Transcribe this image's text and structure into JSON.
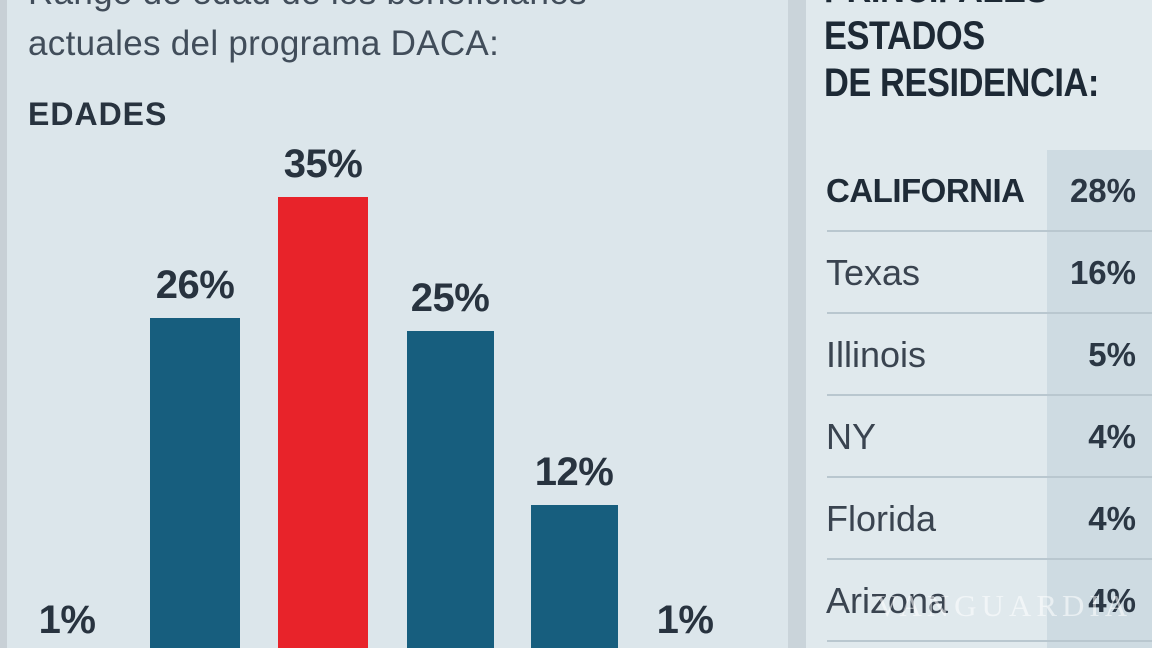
{
  "title": {
    "line1": "Rango de edad de los beneficiarios",
    "line2": "actuales del programa DACA:"
  },
  "chart": {
    "section_label": "EDADES"
  },
  "chart_data": {
    "type": "bar",
    "title": "Rango de edad de los beneficiarios actuales del programa DACA: EDADES",
    "values": [
      1,
      26,
      35,
      25,
      12,
      1
    ],
    "value_labels": [
      "1%",
      "26%",
      "35%",
      "25%",
      "12%",
      "1%"
    ],
    "highlight_index": 2,
    "bar_color": "#175e7e",
    "highlight_color": "#e8232a",
    "label_position": "above-bars",
    "axes_visible": false,
    "category_labels_visible": false,
    "ylim": [
      0,
      35
    ]
  },
  "states_panel": {
    "heading_lines": [
      "PRINCIPALES",
      "ESTADOS",
      "DE RESIDENCIA:"
    ],
    "rows": [
      {
        "state": "CALIFORNIA",
        "value": "28%",
        "emphasis": true
      },
      {
        "state": "Texas",
        "value": "16%",
        "emphasis": false
      },
      {
        "state": "Illinois",
        "value": "5%",
        "emphasis": false
      },
      {
        "state": "NY",
        "value": "4%",
        "emphasis": false
      },
      {
        "state": "Florida",
        "value": "4%",
        "emphasis": false
      },
      {
        "state": "Arizona",
        "value": "4%",
        "emphasis": false
      }
    ],
    "table_data": {
      "type": "table",
      "columns": [
        "state",
        "share"
      ],
      "rows": [
        [
          "CALIFORNIA",
          "28%"
        ],
        [
          "Texas",
          "16%"
        ],
        [
          "Illinois",
          "5%"
        ],
        [
          "NY",
          "4%"
        ],
        [
          "Florida",
          "4%"
        ],
        [
          "Arizona",
          "4%"
        ]
      ]
    }
  },
  "watermark": "VANGUARDIA",
  "colors": {
    "background": "#dce6eb",
    "panel_background": "#e0e9ed",
    "value_column": "#cedbe2",
    "bar_blue": "#175e7e",
    "bar_red": "#e8232a",
    "text_dark": "#28333f"
  }
}
